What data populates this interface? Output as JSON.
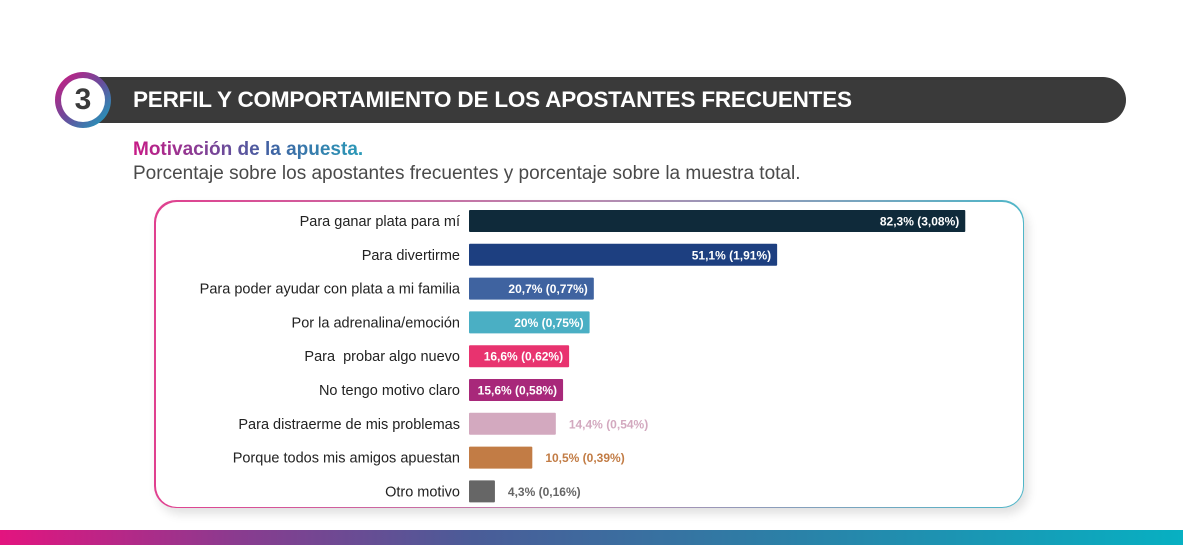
{
  "header": {
    "section_number": "3",
    "title": "PERFIL Y COMPORTAMIENTO DE LOS APOSTANTES FRECUENTES"
  },
  "subtitle": "Motivación de la apuesta.",
  "description": "Porcentaje sobre los apostantes frecuentes y porcentaje sobre la muestra total.",
  "chart_data": {
    "type": "bar",
    "orientation": "horizontal",
    "categories": [
      "Para ganar plata para mí",
      "Para divertirme",
      "Para poder ayudar con plata a mi familia",
      "Por la adrenalina/emoción",
      "Para  probar algo nuevo",
      "No tengo motivo claro",
      "Para distraerme de mis problemas",
      "Porque todos mis amigos apuestan",
      "Otro motivo"
    ],
    "values": [
      82.3,
      51.1,
      20.7,
      20,
      16.6,
      15.6,
      14.4,
      10.5,
      4.3
    ],
    "values_total_sample": [
      3.08,
      1.91,
      0.77,
      0.75,
      0.62,
      0.58,
      0.54,
      0.39,
      0.16
    ],
    "labels": [
      "82,3% (3,08%)",
      "51,1% (1,91%)",
      "20,7% (0,77%)",
      "20% (0,75%)",
      "16,6% (0,62%)",
      "15,6% (0,58%)",
      "14,4% (0,54%)",
      "10,5% (0,39%)",
      "4,3% (0,16%)"
    ],
    "label_inside": [
      true,
      true,
      true,
      true,
      true,
      true,
      false,
      false,
      false
    ],
    "colors": [
      "#0f2a3a",
      "#1d3f80",
      "#3f63a0",
      "#4aafc4",
      "#e8336f",
      "#a8287a",
      "#d3a9bf",
      "#c27c45",
      "#666666"
    ],
    "grid": false
  }
}
